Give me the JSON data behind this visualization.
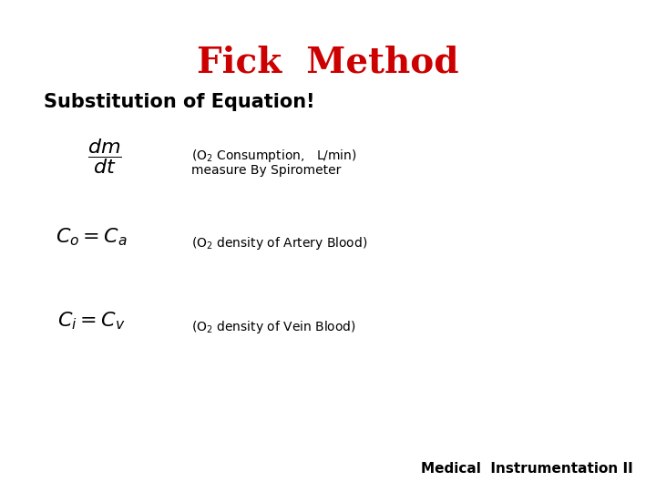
{
  "title": "Fick  Method",
  "title_color": "#CC0000",
  "title_fontsize": 28,
  "title_fontweight": "bold",
  "subtitle": "Substitution of Equation!",
  "subtitle_fontsize": 15,
  "subtitle_fontweight": "bold",
  "subtitle_color": "#000000",
  "eq1_formula": "$\\dfrac{dm}{dt}$",
  "eq1_label1": "(O$_2$ Consumption,   L/min)",
  "eq1_label2": "measure By Spirometer",
  "eq2_formula": "$C_o = C_a$",
  "eq2_label": "(O$_2$ density of Artery Blood)",
  "eq3_formula": "$C_i = C_v$",
  "eq3_label": "(O$_2$ density of Vein Blood)",
  "footer": "Medical  Instrumentation II",
  "footer_fontsize": 11,
  "footer_fontweight": "bold",
  "eq_fontsize": 16,
  "label_fontsize": 10,
  "background_color": "#ffffff"
}
